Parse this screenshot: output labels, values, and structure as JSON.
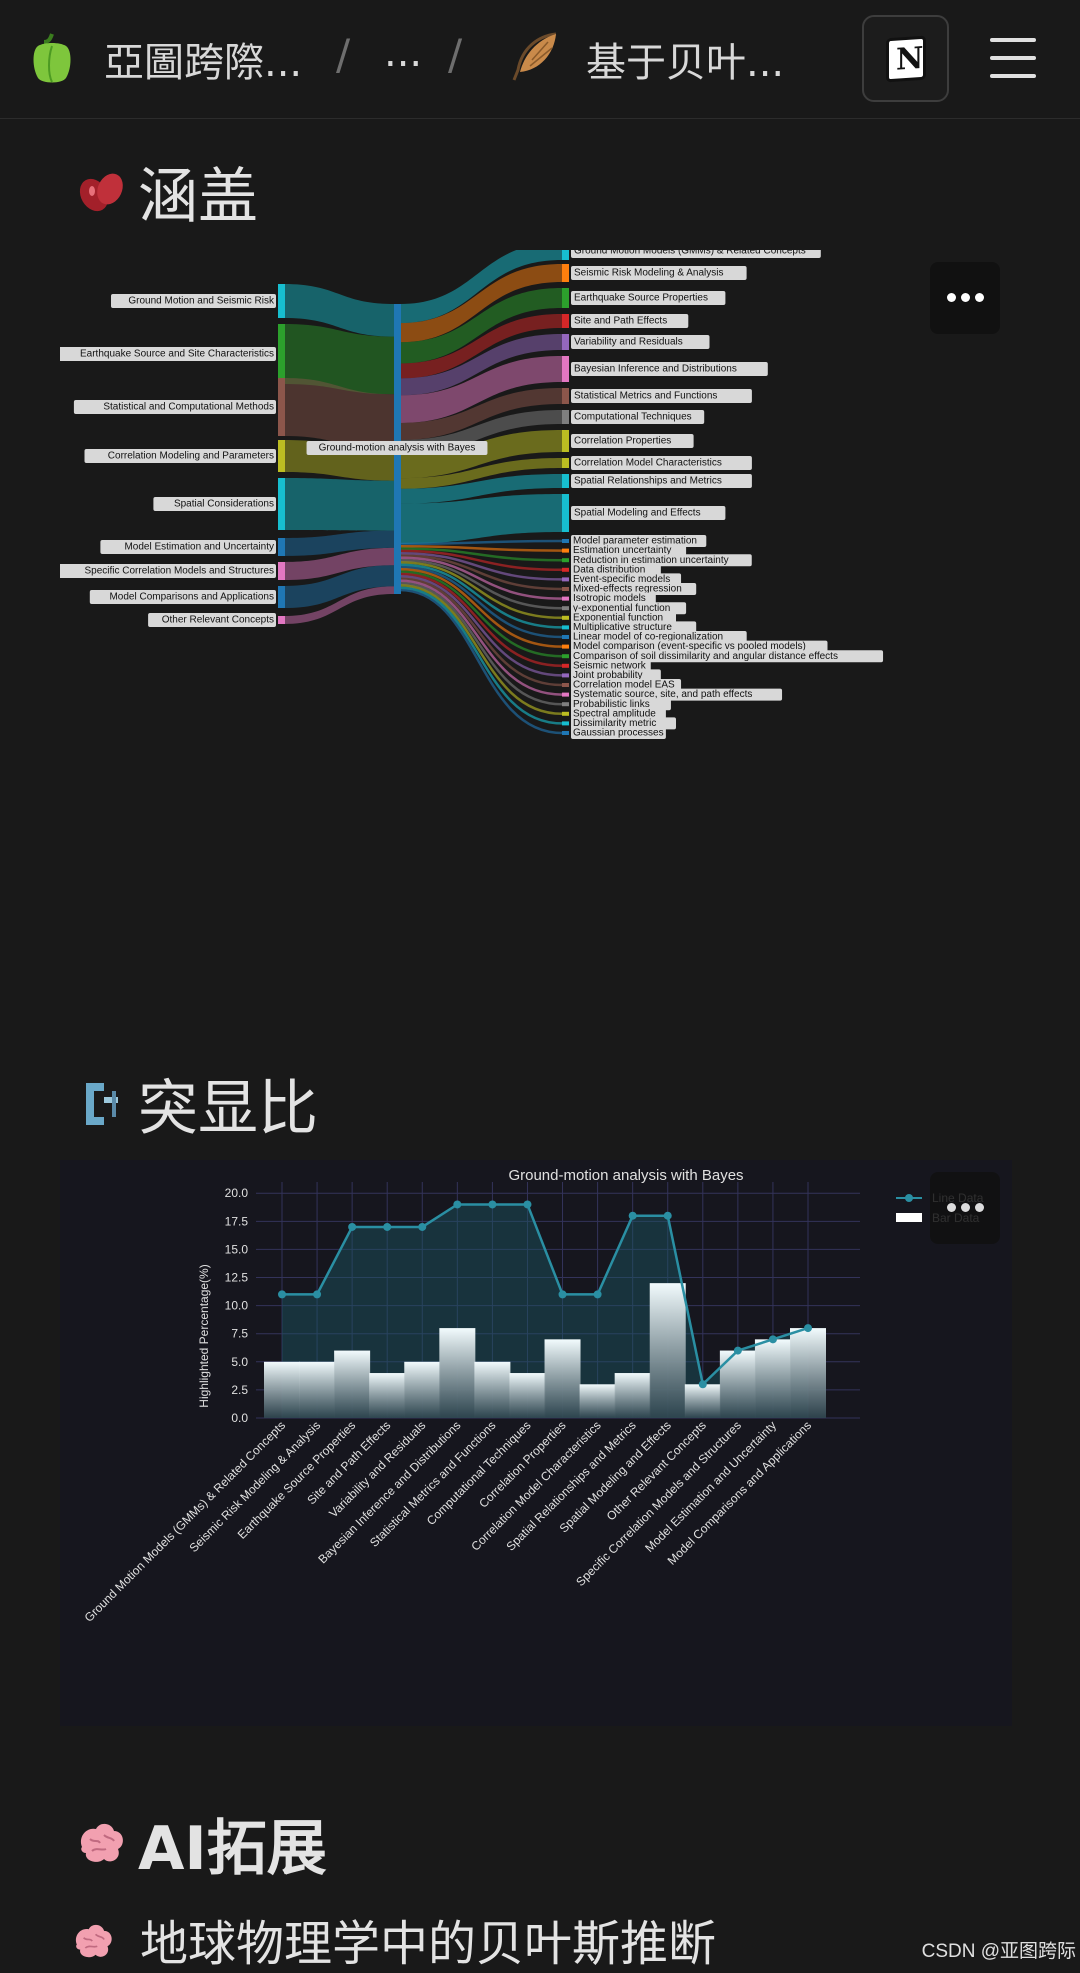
{
  "topbar": {
    "workspace": "亞圖跨際...",
    "ellipsis": "...",
    "page": "基于贝叶...",
    "notion_icon": "notion-icon",
    "menu_icon": "hamburger-menu-icon"
  },
  "section1": {
    "title": "涵盖",
    "icon": "beans-icon"
  },
  "sankey": {
    "center": "Ground-motion analysis with Bayes",
    "left": [
      "Ground Motion and Seismic Risk",
      "Earthquake Source and Site Characteristics",
      "Statistical and Computational Methods",
      "Correlation Modeling and Parameters",
      "Spatial Considerations",
      "Model Estimation and Uncertainty",
      "Specific Correlation Models and Structures",
      "Model Comparisons and Applications",
      "Other Relevant Concepts"
    ],
    "right_major": [
      "Ground Motion Models (GMMs) & Related Concepts",
      "Seismic Risk Modeling & Analysis",
      "Earthquake Source Properties",
      "Site and Path Effects",
      "Variability and Residuals",
      "Bayesian Inference and Distributions",
      "Statistical Metrics and Functions",
      "Computational Techniques",
      "Correlation Properties",
      "Correlation Model Characteristics",
      "Spatial Relationships and Metrics",
      "Spatial Modeling and Effects"
    ],
    "right_minor": [
      "Model parameter estimation",
      "Estimation uncertainty",
      "Reduction in estimation uncertainty",
      "Data distribution",
      "Event-specific models",
      "Mixed-effects regression",
      "Isotropic models",
      "γ-exponential function",
      "Exponential function",
      "Multiplicative structure",
      "Linear model of co-regionalization",
      "Model comparison (event-specific vs pooled models)",
      "Comparison of soil dissimilarity and angular distance effects",
      "Seismic network",
      "Joint probability",
      "Correlation model EAS",
      "Systematic source, site, and path effects",
      "Probabilistic links",
      "Spectral amplitude",
      "Dissimilarity metric",
      "Gaussian processes"
    ],
    "colors": [
      "#17becf",
      "#2ca02c",
      "#8c564b",
      "#bcbd22",
      "#17becf",
      "#1f77b4",
      "#e377c2",
      "#1f77b4",
      "#e377c2"
    ],
    "right_colors": [
      "#17becf",
      "#ff7f0e",
      "#2ca02c",
      "#d62728",
      "#9467bd",
      "#e377c2",
      "#8c564b",
      "#7f7f7f",
      "#bcbd22",
      "#bcbd22",
      "#17becf",
      "#17becf"
    ]
  },
  "section2": {
    "title": "突显比",
    "icon": "clamp-icon"
  },
  "chart_data": {
    "type": "bar",
    "title": "Ground-motion analysis with Bayes",
    "ylabel": "Highlighted Percentage(%)",
    "xlabel": "",
    "ylim": [
      0,
      21
    ],
    "yticks": [
      "0.0",
      "2.5",
      "5.0",
      "7.5",
      "10.0",
      "12.5",
      "15.0",
      "17.5",
      "20.0"
    ],
    "grid": true,
    "legend_position": "top-right",
    "categories": [
      "Ground Motion Models (GMMs) & Related Concepts",
      "Seismic Risk Modeling & Analysis",
      "Earthquake Source Properties",
      "Site and Path Effects",
      "Variability and Residuals",
      "Bayesian Inference and Distributions",
      "Statistical Metrics and Functions",
      "Computational Techniques",
      "Correlation Properties",
      "Correlation Model Characteristics",
      "Spatial Relationships and Metrics",
      "Spatial Modeling and Effects",
      "Other Relevant Concepts",
      "Specific Correlation Models and Structures",
      "Model Estimation and Uncertainty",
      "Model Comparisons and Applications"
    ],
    "series": [
      {
        "name": "Bar Data",
        "kind": "bar",
        "values": [
          5,
          5,
          6,
          4,
          5,
          8,
          5,
          4,
          7,
          3,
          4,
          12,
          3,
          6,
          7,
          8
        ]
      },
      {
        "name": "Line Data",
        "kind": "line",
        "values": [
          11,
          11,
          17,
          17,
          17,
          19,
          19,
          19,
          11,
          11,
          18,
          18,
          3,
          6,
          7,
          8
        ]
      }
    ],
    "colors": {
      "line": "#2a8fa3",
      "bar": "#e8f4f8"
    }
  },
  "section3": {
    "title": "AI拓展",
    "icon": "brain-icon"
  },
  "subsection": {
    "title": "地球物理学中的贝叶斯推断",
    "icon": "brain-icon"
  },
  "footer": {
    "text": "CSDN @亚图跨际"
  }
}
